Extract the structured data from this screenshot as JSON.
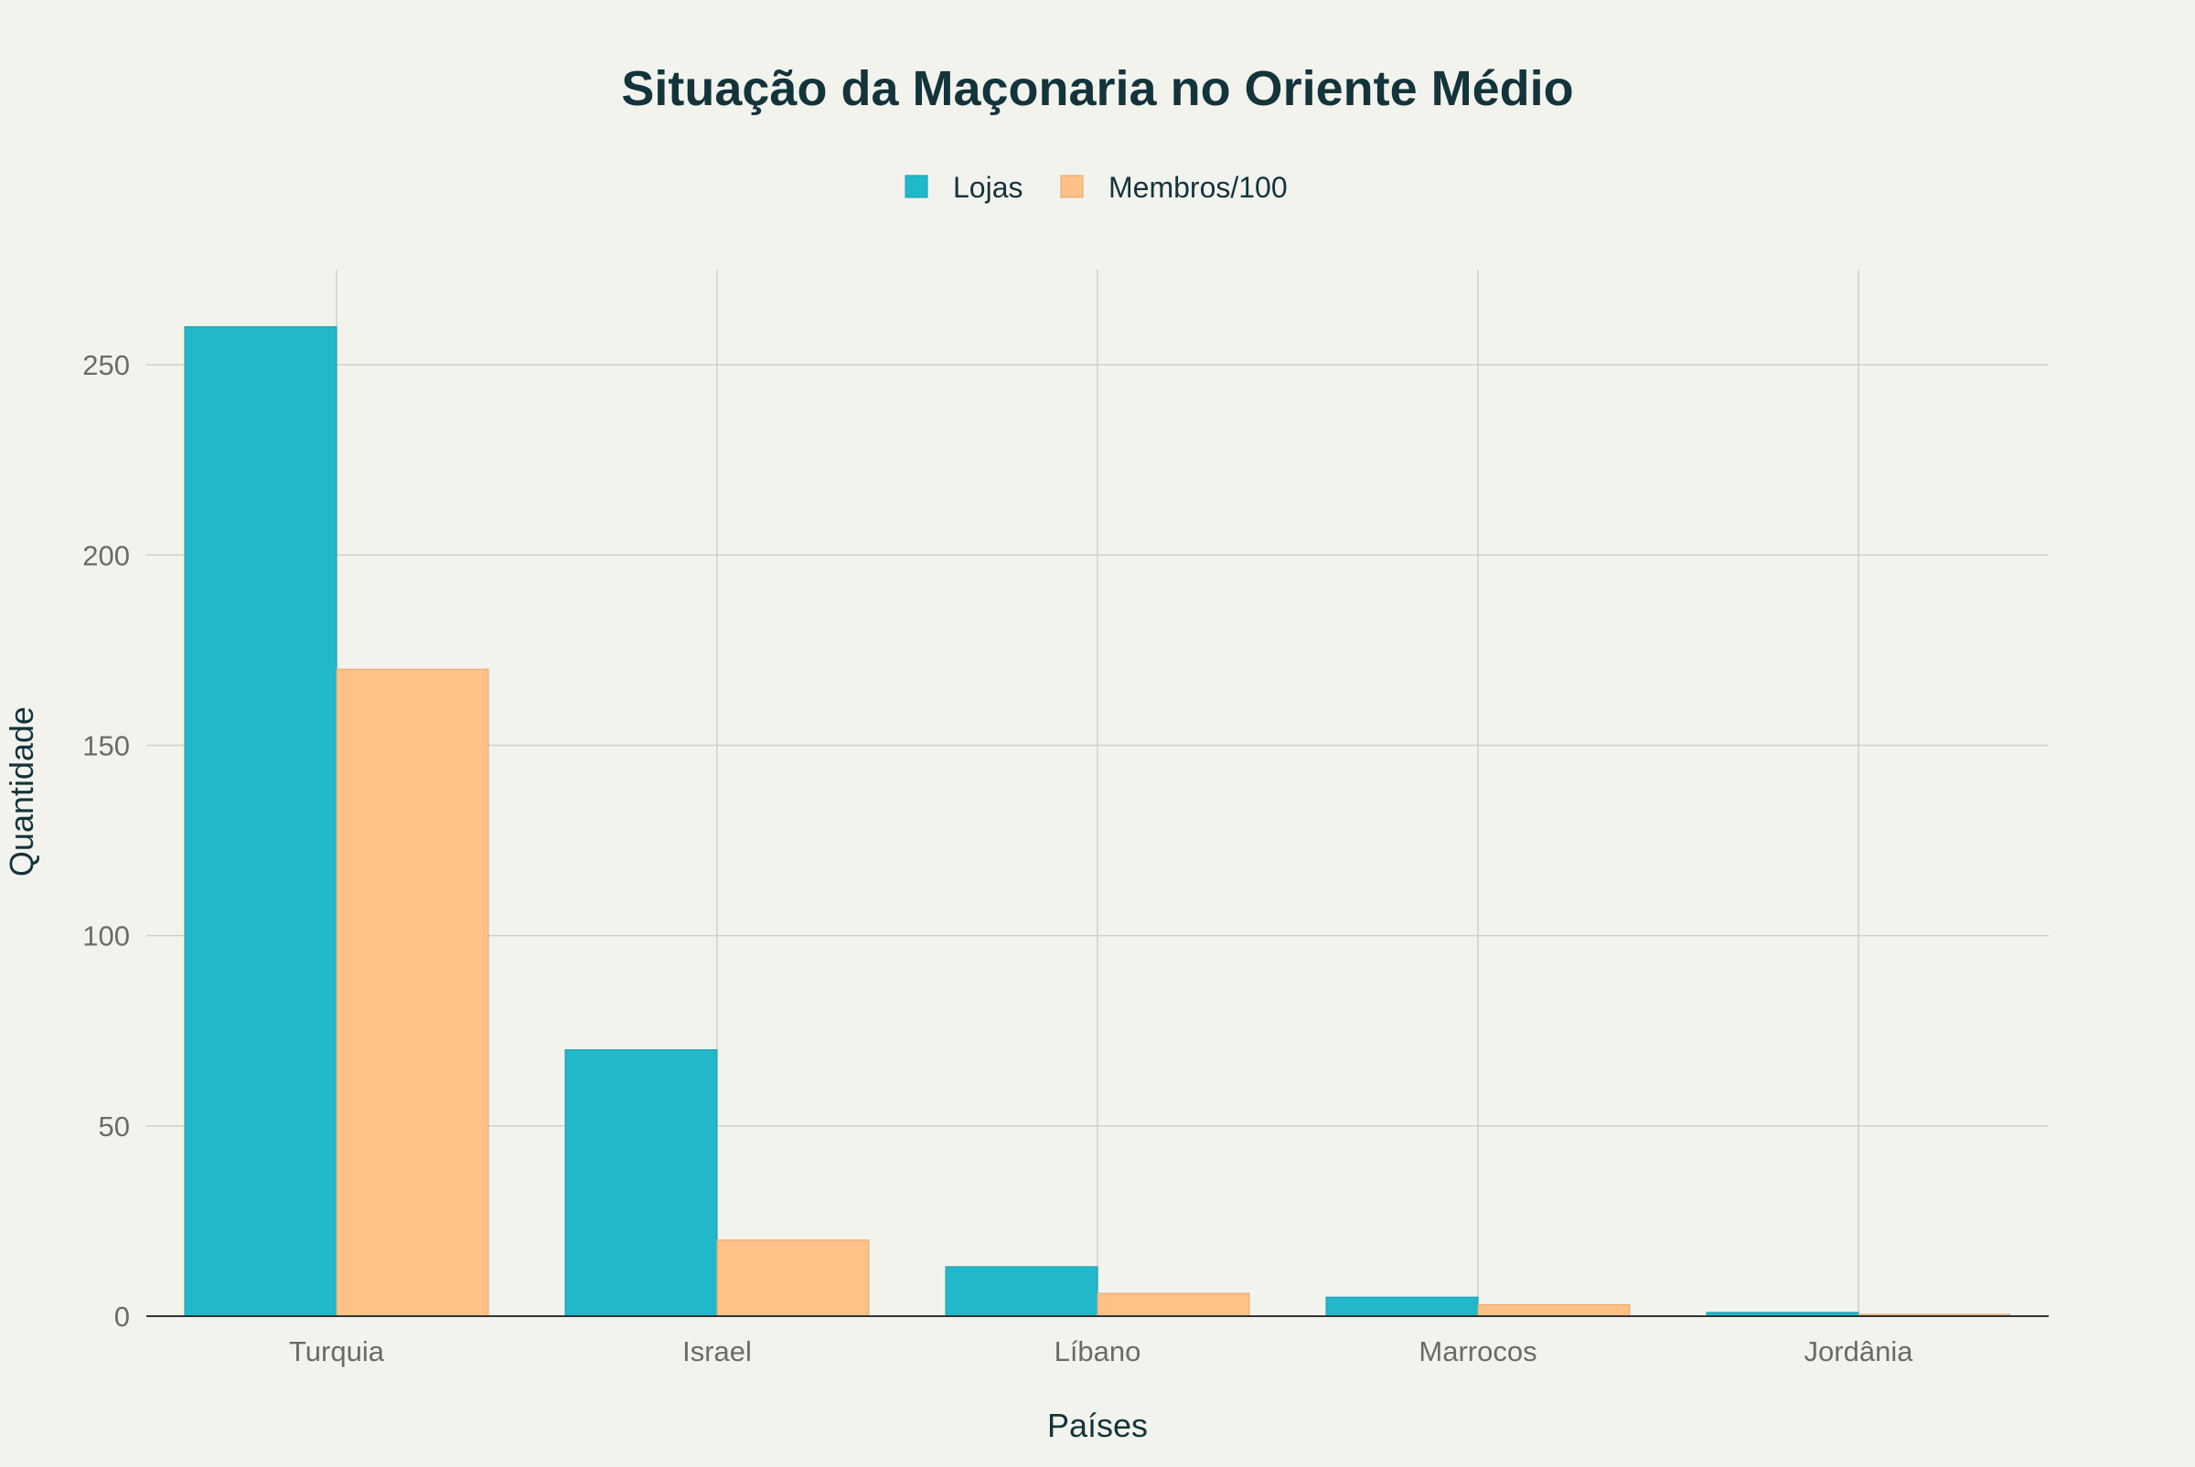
{
  "chart_data": {
    "type": "bar",
    "title": "Situação da Maçonaria no Oriente Médio",
    "xlabel": "Países",
    "ylabel": "Quantidade",
    "categories": [
      "Turquia",
      "Israel",
      "Líbano",
      "Marrocos",
      "Jordânia"
    ],
    "series": [
      {
        "name": "Lojas",
        "values": [
          260,
          70,
          13,
          5,
          1
        ],
        "color": "#21b8cb"
      },
      {
        "name": "Membros/100",
        "values": [
          170,
          20,
          6,
          3,
          0.5
        ],
        "color": "#ffc185"
      }
    ],
    "ylim": [
      0,
      275
    ],
    "yticks": [
      0,
      50,
      100,
      150,
      200,
      250
    ],
    "grid": true,
    "legend_position": "top-center"
  }
}
